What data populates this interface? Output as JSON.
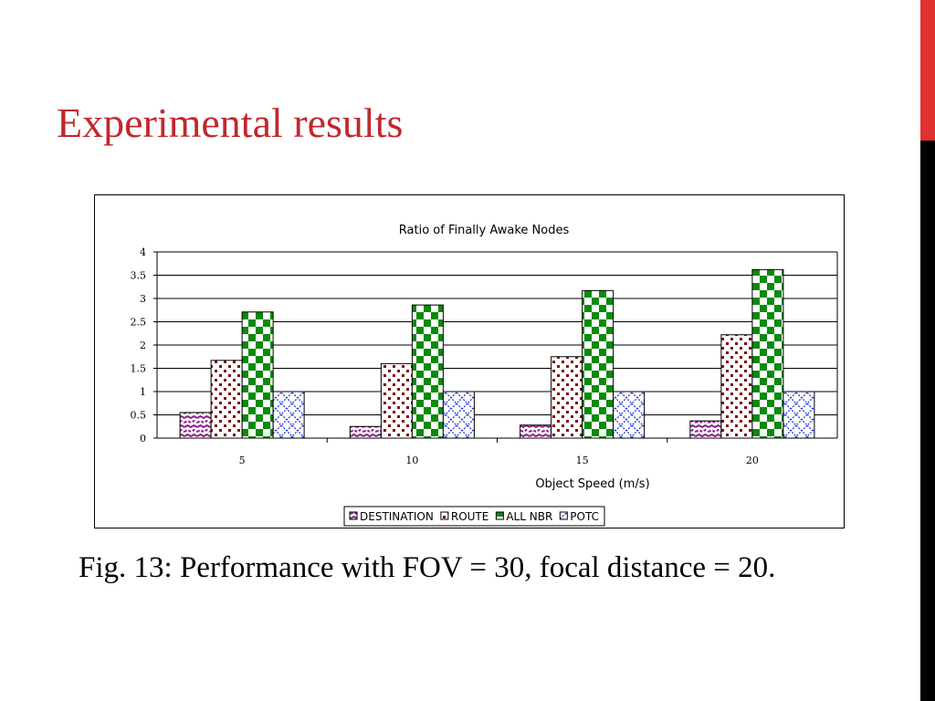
{
  "slide": {
    "title": "Experimental results",
    "caption": "Fig. 13: Performance with FOV = 30, focal distance = 20."
  },
  "colors": {
    "title": "#c0282d",
    "accent_bar_top": "#e03030",
    "accent_bar_bottom": "#000000",
    "DESTINATION": "#8b1e8b",
    "ROUTE": "#7a0f0f",
    "ALL NBR": "#0a8a0a",
    "POTC": "#1a2fd6"
  },
  "chart_data": {
    "type": "bar",
    "title": "Ratio of Finally Awake Nodes",
    "xlabel": "Object Speed (m/s)",
    "ylabel": "",
    "categories": [
      "5",
      "10",
      "15",
      "20"
    ],
    "ylim": [
      0,
      4
    ],
    "yticks": [
      "0",
      "0.5",
      "1",
      "1.5",
      "2",
      "2.5",
      "3",
      "3.5",
      "4"
    ],
    "grid": true,
    "legend_position": "bottom",
    "series": [
      {
        "name": "DESTINATION",
        "values": [
          0.55,
          0.25,
          0.28,
          0.37
        ]
      },
      {
        "name": "ROUTE",
        "values": [
          1.67,
          1.6,
          1.75,
          2.22
        ]
      },
      {
        "name": "ALL NBR",
        "values": [
          2.71,
          2.86,
          3.17,
          3.62
        ]
      },
      {
        "name": "POTC",
        "values": [
          1.0,
          1.0,
          1.0,
          1.0
        ]
      }
    ]
  }
}
